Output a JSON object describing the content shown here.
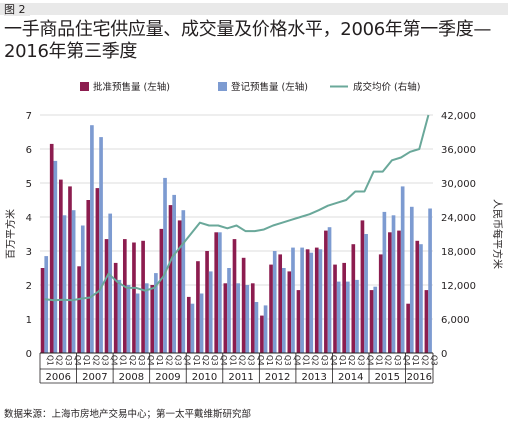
{
  "figure_label": "图 2",
  "title": "一手商品住宅供应量、成交量及价格水平，2006年第一季度—2016年第三季度",
  "source": "数据来源：上海市房地产交易中心；第一太平戴维斯研究部",
  "colors": {
    "approved": "#8c1d4f",
    "registered": "#7d9bd1",
    "price": "#6aa89a",
    "grid": "#d0d0d0",
    "axis": "#231f20"
  },
  "chart_data": {
    "type": "bar",
    "title": "一手商品住宅供应量、成交量及价格水平，2006年第一季度—2016年第三季度",
    "ylabel": "百万平方米",
    "y2label": "人民币每平方米",
    "ylim": [
      0,
      7
    ],
    "y2lim": [
      0,
      42000
    ],
    "yticks": [
      "0",
      "1",
      "2",
      "3",
      "4",
      "5",
      "6",
      "7"
    ],
    "y2ticks": [
      "0",
      "6,000",
      "12,000",
      "18,000",
      "24,000",
      "30,000",
      "36,000",
      "42,000"
    ],
    "quarter_labels": [
      "Q1",
      "Q2",
      "Q3",
      "Q4"
    ],
    "years": [
      "2006",
      "2007",
      "2008",
      "2009",
      "2010",
      "2011",
      "2012",
      "2013",
      "2014",
      "2015",
      "2016"
    ],
    "legend_position": "top",
    "series": [
      {
        "name": "批准预售量 (左轴)",
        "type": "bar",
        "axis": "left",
        "values": [
          2.5,
          6.15,
          5.1,
          4.9,
          2.55,
          4.5,
          4.85,
          3.35,
          2.65,
          3.35,
          3.25,
          3.3,
          2.0,
          3.65,
          4.35,
          3.9,
          1.65,
          2.7,
          3.0,
          3.55,
          2.05,
          3.35,
          2.8,
          2.05,
          1.1,
          2.6,
          2.9,
          2.4,
          1.85,
          3.05,
          3.1,
          3.6,
          2.6,
          2.65,
          3.2,
          3.9,
          1.85,
          2.9,
          3.55,
          3.6,
          1.45,
          3.3,
          1.85
        ]
      },
      {
        "name": "登记预售量 (左轴)",
        "type": "bar",
        "axis": "left",
        "values": [
          2.85,
          5.65,
          4.05,
          4.2,
          3.75,
          6.7,
          6.35,
          4.1,
          2.15,
          2.0,
          1.75,
          2.05,
          2.35,
          5.15,
          4.65,
          4.2,
          1.45,
          1.75,
          2.4,
          3.55,
          2.5,
          2.05,
          2.0,
          1.5,
          1.4,
          3.0,
          2.5,
          3.1,
          3.1,
          2.95,
          3.05,
          3.7,
          2.1,
          2.1,
          2.15,
          3.5,
          1.95,
          4.15,
          4.05,
          4.9,
          4.3,
          3.2,
          4.25
        ]
      },
      {
        "name": "成交均价 (右轴)",
        "type": "line",
        "axis": "right",
        "values": [
          9500,
          9300,
          9400,
          9300,
          9600,
          9800,
          11000,
          14000,
          12500,
          11500,
          11500,
          11000,
          11500,
          13500,
          17000,
          19000,
          21000,
          23000,
          22500,
          22500,
          22000,
          22500,
          21500,
          21500,
          21800,
          22500,
          23000,
          23500,
          24000,
          24500,
          25200,
          26000,
          26500,
          27000,
          28500,
          28500,
          32000,
          32000,
          34000,
          34500,
          35500,
          36000,
          42000
        ]
      }
    ]
  }
}
